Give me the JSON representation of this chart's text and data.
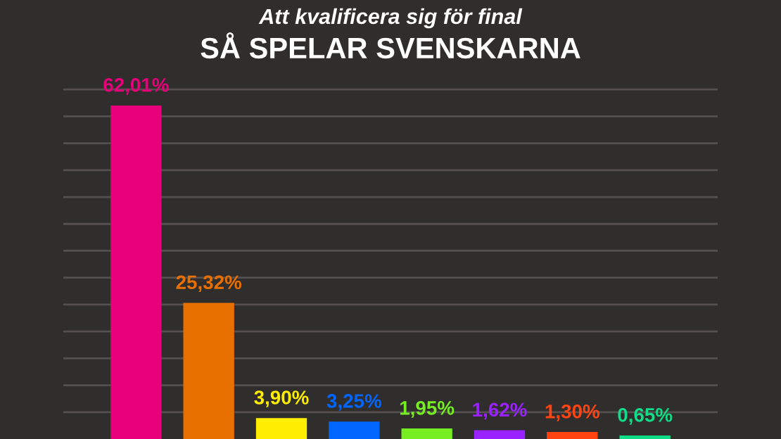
{
  "chart_data": {
    "type": "bar",
    "title": "SÅ SPELAR SVENSKARNA",
    "subtitle": "Att kvalificera sig för final",
    "categories": [
      null,
      null,
      null,
      null,
      null,
      null,
      null,
      null
    ],
    "values": [
      62.01,
      25.32,
      3.9,
      3.25,
      1.95,
      1.62,
      1.3,
      0.65
    ],
    "colors": [
      "#e8007a",
      "#e87000",
      "#ffee00",
      "#0066ff",
      "#77ee22",
      "#9922ff",
      "#ff4411",
      "#11dd88"
    ],
    "value_labels": [
      "62,01%",
      "25,32%",
      "3,90%",
      "3,25%",
      "1,95%",
      "1,62%",
      "1,30%",
      "0,65%"
    ],
    "yticks": [
      {
        "value": 5,
        "label": null
      },
      {
        "value": 10,
        "label": null
      },
      {
        "value": 15,
        "label": null
      },
      {
        "value": 20,
        "label": null
      },
      {
        "value": 25,
        "label": null
      },
      {
        "value": 30,
        "label": null
      },
      {
        "value": 35,
        "label": null
      },
      {
        "value": 40,
        "label": null
      },
      {
        "value": 45,
        "label": null
      },
      {
        "value": 50,
        "label": null
      },
      {
        "value": 55,
        "label": null
      },
      {
        "value": 60,
        "label": null
      },
      {
        "value": 65,
        "label": null
      }
    ],
    "grid": "y",
    "legend": false
  }
}
